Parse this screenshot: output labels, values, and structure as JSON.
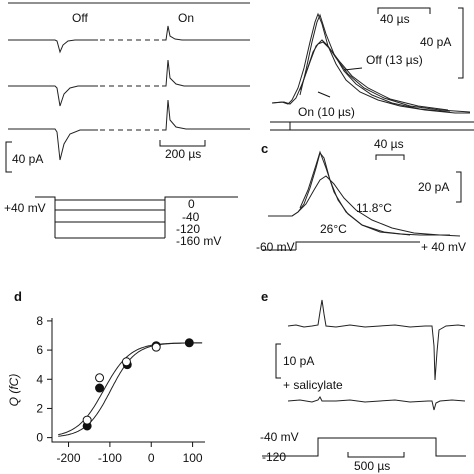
{
  "panels": {
    "a": {
      "labels": {
        "off": "Off",
        "on": "On"
      },
      "scale": {
        "current": "40 pA",
        "time": "200 µs"
      },
      "protocol": {
        "hold": "+40 mV",
        "steps": [
          "0",
          "-40",
          "-120",
          "-160 mV"
        ]
      }
    },
    "b": {
      "scale": {
        "time": "40 µs",
        "current": "40 pA"
      },
      "fits": {
        "off": "Off (13 µs)",
        "on": "On (10 µs)"
      }
    },
    "c": {
      "letter": "c",
      "scale": {
        "time": "40 µs",
        "current": "20 pA"
      },
      "temps": {
        "cold": "11.8°C",
        "warm": "26°C"
      },
      "voltage": {
        "start": "-60 mV",
        "end": "+ 40 mV"
      }
    },
    "e": {
      "letter": "e",
      "scale": {
        "current": "10 pA",
        "time": "500 µs"
      },
      "drug": "+ salicylate",
      "voltage": {
        "top": "-40 mV",
        "bottom": "-120"
      }
    }
  },
  "chart_data": {
    "type": "scatter",
    "panel_letter": "d",
    "title": "",
    "xlabel": "",
    "ylabel": "Q (fC)",
    "xlim": [
      -240,
      130
    ],
    "ylim": [
      -0.3,
      8.2
    ],
    "xticks": [
      -200,
      -100,
      0,
      100
    ],
    "yticks": [
      0,
      2,
      4,
      6,
      8
    ],
    "series": [
      {
        "marker": "filled",
        "x": [
          -155,
          -125,
          -58,
          12,
          92
        ],
        "y": [
          0.8,
          3.4,
          5.0,
          6.3,
          6.5
        ]
      },
      {
        "marker": "open",
        "x": [
          -155,
          -125,
          -60,
          12
        ],
        "y": [
          1.2,
          4.1,
          5.2,
          6.2
        ]
      }
    ],
    "fits": [
      {
        "v_half": -115,
        "slope": 32,
        "qmax": 6.5
      },
      {
        "v_half": -98,
        "slope": 30,
        "qmax": 6.5
      }
    ],
    "grid": false,
    "legend": "none"
  }
}
